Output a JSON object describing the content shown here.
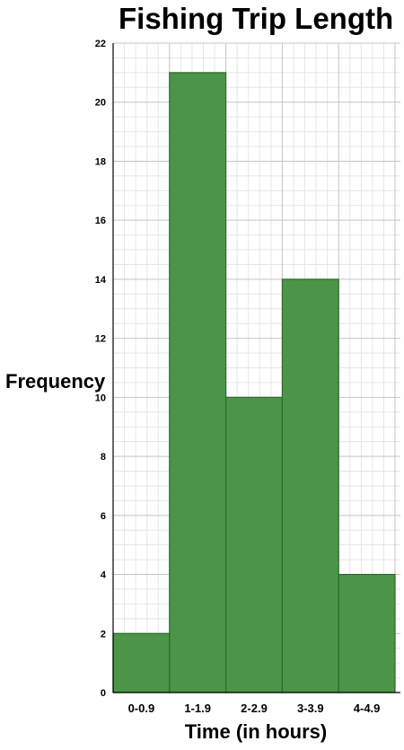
{
  "chart_data": {
    "type": "bar",
    "title": "Fishing Trip Length",
    "xlabel": "Time (in hours)",
    "ylabel": "Frequency",
    "categories": [
      "0-0.9",
      "1-1.9",
      "2-2.9",
      "3-3.9",
      "4-4.9"
    ],
    "values": [
      2,
      21,
      10,
      14,
      4
    ],
    "ylim": [
      0,
      22
    ],
    "yticks": [
      0,
      2,
      4,
      6,
      8,
      10,
      12,
      14,
      16,
      18,
      20,
      22
    ],
    "grid": true,
    "bar_color": "#4c9447",
    "bar_edge_color": "#2b6b28"
  }
}
